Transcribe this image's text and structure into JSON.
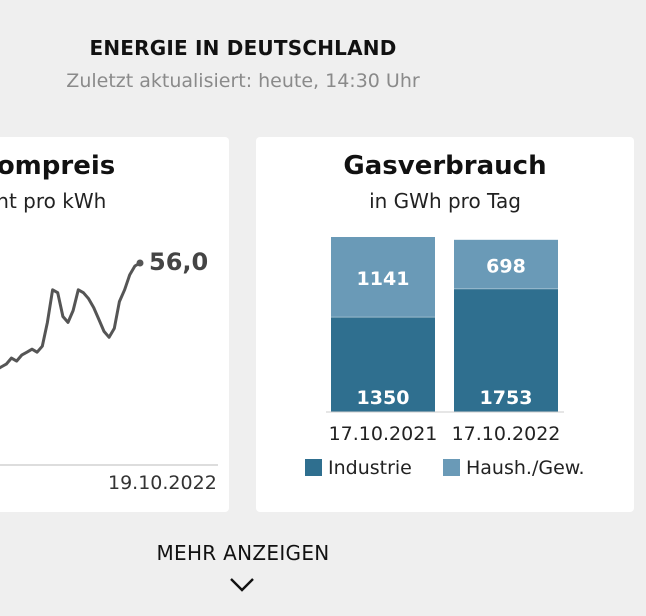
{
  "header": {
    "title": "ENERGIE IN DEUTSCHLAND",
    "subtitle": "Zuletzt aktualisiert: heute, 14:30 Uhr"
  },
  "cards": {
    "strom": {
      "title": "rompreis",
      "subtitle": "ent pro kWh",
      "end_label": "56,0",
      "x_end_label": "19.10.2022"
    },
    "gas": {
      "title": "Gasverbrauch",
      "subtitle": "in GWh pro Tag"
    }
  },
  "more": {
    "label": "MEHR ANZEIGEN",
    "icon": "chevron-down-icon"
  },
  "colors": {
    "industrie": "#2f6f8f",
    "haushalt": "#6a9ab7",
    "line": "#555555"
  },
  "chart_data": [
    {
      "type": "line",
      "title": "rompreis",
      "subtitle": "ent pro kWh",
      "x_end": "19.10.2022",
      "end_value": 56.0,
      "series": [
        {
          "values": [
            20,
            21,
            22,
            24,
            23,
            25,
            26,
            27,
            26,
            28,
            36,
            47,
            46,
            38,
            36,
            40,
            47,
            46,
            44,
            41,
            37,
            33,
            31,
            34,
            43,
            47,
            52,
            55,
            56
          ]
        }
      ]
    },
    {
      "type": "bar",
      "title": "Gasverbrauch",
      "subtitle": "in GWh pro Tag",
      "stacked": true,
      "categories": [
        "17.10.2021",
        "17.10.2022"
      ],
      "series": [
        {
          "name": "Industrie",
          "values": [
            1350,
            1753
          ]
        },
        {
          "name": "Haush./Gew.",
          "values": [
            1141,
            698
          ]
        }
      ],
      "ylim": [
        0,
        2491
      ]
    }
  ]
}
